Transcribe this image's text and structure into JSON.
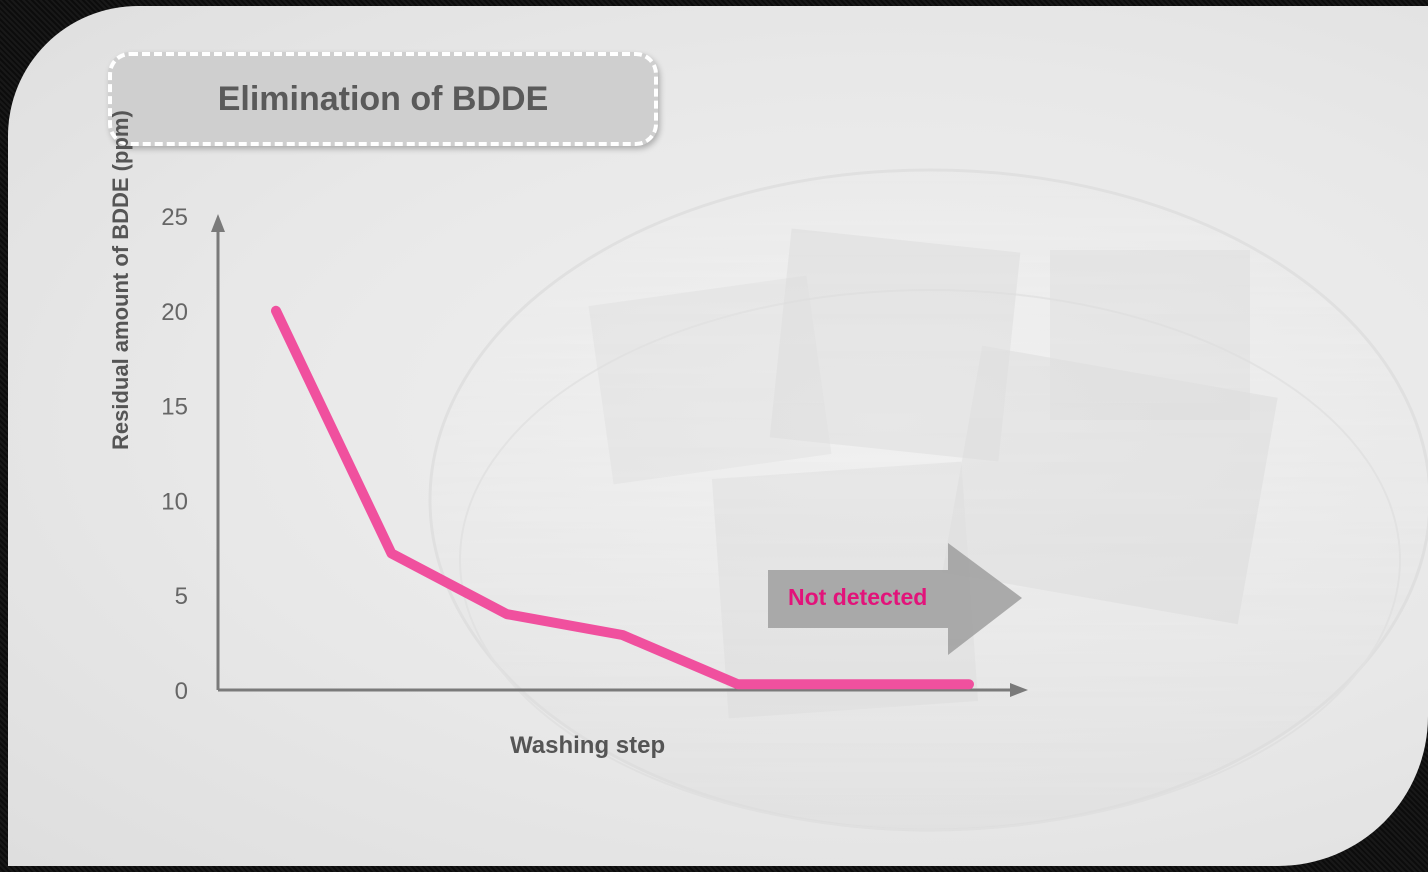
{
  "chart_data": {
    "type": "line",
    "title": "Elimination of BDDE",
    "xlabel": "Washing step",
    "ylabel": "Residual amount of BDDE (ppm)",
    "y_ticks": [
      "0",
      "5",
      "10",
      "15",
      "20",
      "25"
    ],
    "ylim": [
      0,
      25
    ],
    "x": [
      1,
      2,
      3,
      4,
      5,
      6,
      7
    ],
    "series": [
      {
        "values": [
          20,
          7.2,
          4,
          2.9,
          0.3,
          0.3,
          0.3
        ]
      }
    ],
    "annotation": "Not detected",
    "grid": false,
    "line_color": "#f0509e"
  }
}
